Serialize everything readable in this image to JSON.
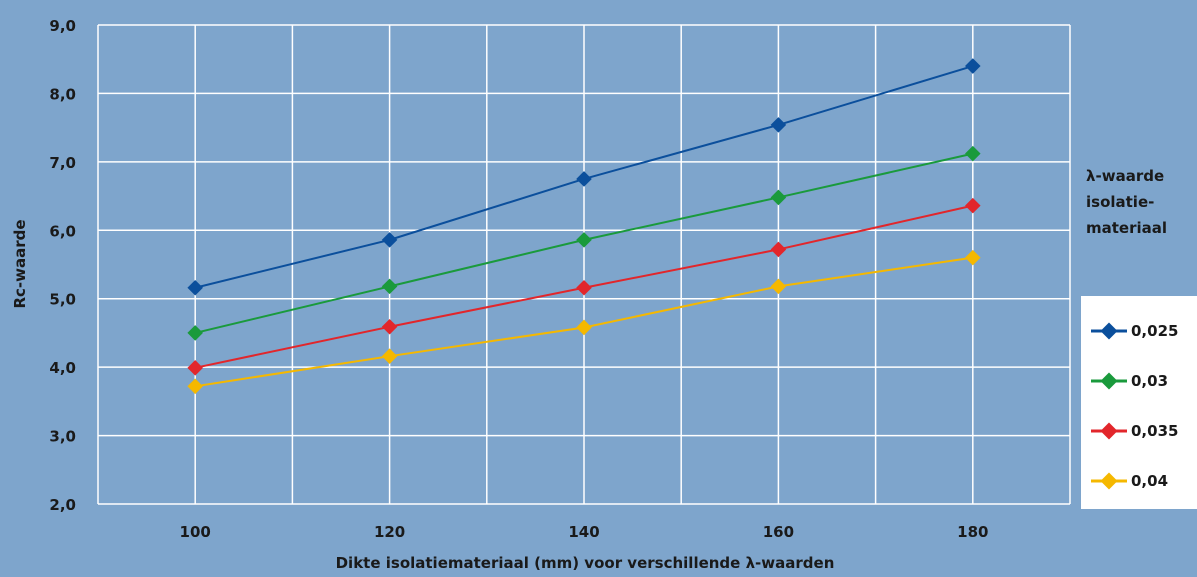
{
  "chart_data": {
    "type": "line",
    "categories": [
      "100",
      "120",
      "140",
      "160",
      "180"
    ],
    "x": [
      100,
      120,
      140,
      160,
      180
    ],
    "xlim": [
      90,
      190
    ],
    "ylim": [
      2.0,
      9.0
    ],
    "yticks": [
      "2,0",
      "3,0",
      "4,0",
      "5,0",
      "6,0",
      "7,0",
      "8,0",
      "9,0"
    ],
    "xlabel": "Dikte isolatiemateriaal (mm) voor verschillende λ-waarden",
    "ylabel": "Rc-waarde",
    "grid": true,
    "legend_title": [
      "λ-waarde",
      "isolatie-",
      "materiaal"
    ],
    "legend_placement": "right",
    "series": [
      {
        "name": "0,025",
        "color": "#0b4f9c",
        "values": [
          5.16,
          5.86,
          6.75,
          7.54,
          8.4
        ]
      },
      {
        "name": "0,03",
        "color": "#1a9a3c",
        "values": [
          4.5,
          5.18,
          5.86,
          6.48,
          7.12
        ]
      },
      {
        "name": "0,035",
        "color": "#e2262b",
        "values": [
          3.99,
          4.59,
          5.16,
          5.72,
          6.36
        ]
      },
      {
        "name": "0,04",
        "color": "#f5b800",
        "values": [
          3.72,
          4.16,
          4.58,
          5.18,
          5.6
        ]
      }
    ]
  },
  "colors": {
    "background": "#7ea5cc",
    "grid": "#ffffff"
  }
}
